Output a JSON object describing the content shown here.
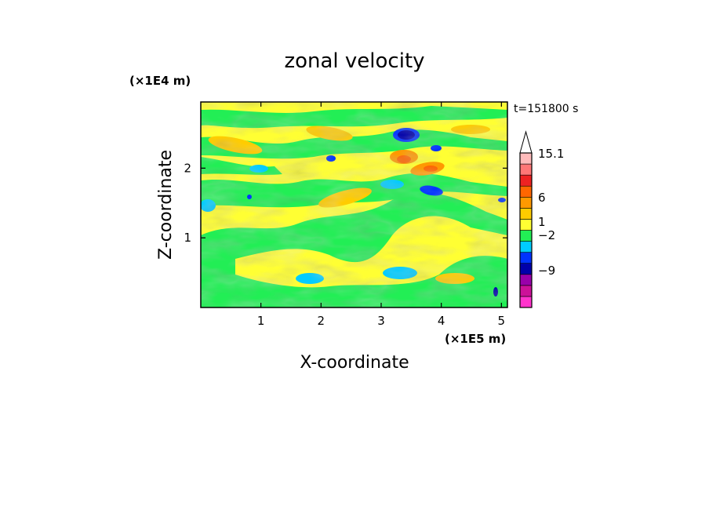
{
  "chart_data": {
    "type": "heatmap",
    "title": "zonal velocity",
    "xlabel": "X-coordinate",
    "ylabel": "Z-coordinate",
    "x_unit": "(×1E5 m)",
    "y_unit": "(×1E4 m)",
    "time_label": "t=151800 s",
    "xlim": [
      0,
      5.1
    ],
    "ylim": [
      0,
      2.95
    ],
    "x_ticks": [
      "1",
      "2",
      "3",
      "4",
      "5"
    ],
    "y_ticks": [
      "1",
      "2"
    ],
    "x_tick_values": [
      1,
      2,
      3,
      4,
      5
    ],
    "y_tick_values": [
      1,
      2
    ],
    "colorbar": {
      "labels": [
        {
          "text": "15.1",
          "value": 15.1
        },
        {
          "text": "6",
          "value": 6
        },
        {
          "text": "1",
          "value": 1
        },
        {
          "text": "−2",
          "value": -2
        },
        {
          "text": "−9",
          "value": -9
        }
      ],
      "colors": [
        "#ff33cc",
        "#cc1199",
        "#9900aa",
        "#0000aa",
        "#0033ff",
        "#00ccff",
        "#22ee55",
        "#ffff33",
        "#ffcc00",
        "#ff9900",
        "#ff6600",
        "#ee2222",
        "#ff7777",
        "#ffbbbb"
      ],
      "extend_top_color": "#ffffff"
    }
  }
}
